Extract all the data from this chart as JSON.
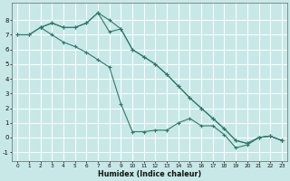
{
  "xlabel": "Humidex (Indice chaleur)",
  "xlim": [
    -0.5,
    23.5
  ],
  "ylim": [
    -1.6,
    9.2
  ],
  "bg_color": "#c8e8e8",
  "grid_color": "#ffffff",
  "line_color": "#2d7a6a",
  "line1_x": [
    0,
    1,
    2,
    3,
    4,
    5,
    6,
    7,
    8,
    9,
    10,
    11,
    12,
    13,
    14,
    15,
    16,
    17,
    18,
    19,
    20,
    21,
    22,
    23
  ],
  "line1_y": [
    7.0,
    7.0,
    7.5,
    7.0,
    6.5,
    6.2,
    5.8,
    5.3,
    4.8,
    2.3,
    0.4,
    0.4,
    0.5,
    0.5,
    1.0,
    1.3,
    0.8,
    0.8,
    0.2,
    -0.7,
    -0.5,
    0.0,
    0.1,
    -0.2
  ],
  "line2_x": [
    0,
    1,
    2,
    3,
    4,
    5,
    6,
    7,
    8,
    9,
    10,
    11,
    12,
    13,
    14,
    15,
    16,
    17,
    18,
    19,
    20,
    21,
    22,
    23
  ],
  "line2_y": [
    7.0,
    7.0,
    7.5,
    7.8,
    7.5,
    7.5,
    7.8,
    8.5,
    7.2,
    7.4,
    6.0,
    5.5,
    5.0,
    4.3,
    3.5,
    2.7,
    2.0,
    1.3,
    0.6,
    -0.2,
    -0.4,
    0.0,
    0.1,
    -0.2
  ],
  "line3_x": [
    2,
    3,
    4,
    5,
    6,
    7,
    8,
    9,
    10,
    11,
    12,
    13,
    14,
    15,
    16,
    17,
    18,
    19,
    20,
    21,
    22,
    23
  ],
  "line3_y": [
    7.5,
    7.8,
    7.5,
    7.5,
    7.8,
    8.5,
    8.0,
    7.4,
    6.0,
    5.5,
    5.0,
    4.3,
    3.5,
    2.7,
    2.0,
    1.3,
    0.6,
    -0.2,
    -0.4,
    0.0,
    0.1,
    -0.2
  ],
  "ytick_values": [
    -1,
    0,
    1,
    2,
    3,
    4,
    5,
    6,
    7,
    8
  ],
  "xtick_labels": [
    "0",
    "1",
    "2",
    "3",
    "4",
    "5",
    "6",
    "7",
    "8",
    "9",
    "10",
    "11",
    "12",
    "13",
    "14",
    "15",
    "16",
    "17",
    "18",
    "19",
    "20",
    "21",
    "22",
    "23"
  ]
}
